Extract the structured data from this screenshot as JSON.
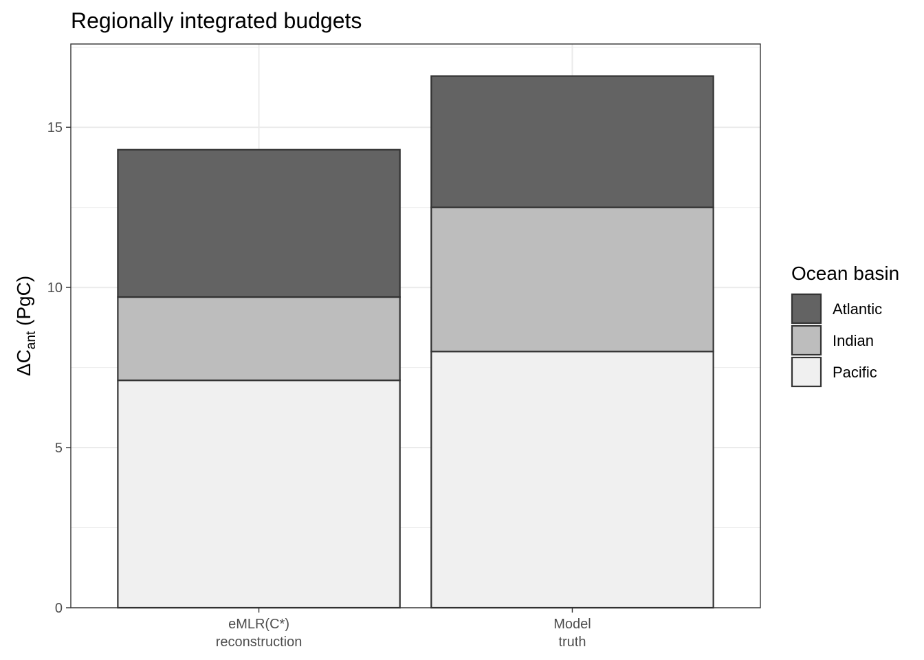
{
  "chart_data": {
    "type": "bar",
    "stacked": true,
    "title": "Regionally integrated budgets",
    "xlabel": "",
    "ylabel": {
      "prefix": "ΔC",
      "subscript": "ant",
      "suffix": " (PgC)"
    },
    "categories": [
      [
        "eMLR(C*)",
        "reconstruction"
      ],
      [
        "Model",
        "truth"
      ]
    ],
    "ylim": [
      0,
      17.6
    ],
    "yticks": [
      0,
      5,
      10,
      15
    ],
    "grid": true,
    "legend": {
      "title": "Ocean basin",
      "placement": "right"
    },
    "series": [
      {
        "name": "Pacific",
        "color": "#f0f0f0",
        "values": [
          7.1,
          8.0
        ]
      },
      {
        "name": "Indian",
        "color": "#bdbdbd",
        "values": [
          2.6,
          4.5
        ]
      },
      {
        "name": "Atlantic",
        "color": "#636363",
        "values": [
          4.6,
          4.1
        ]
      }
    ],
    "legend_order": [
      "Atlantic",
      "Indian",
      "Pacific"
    ]
  }
}
